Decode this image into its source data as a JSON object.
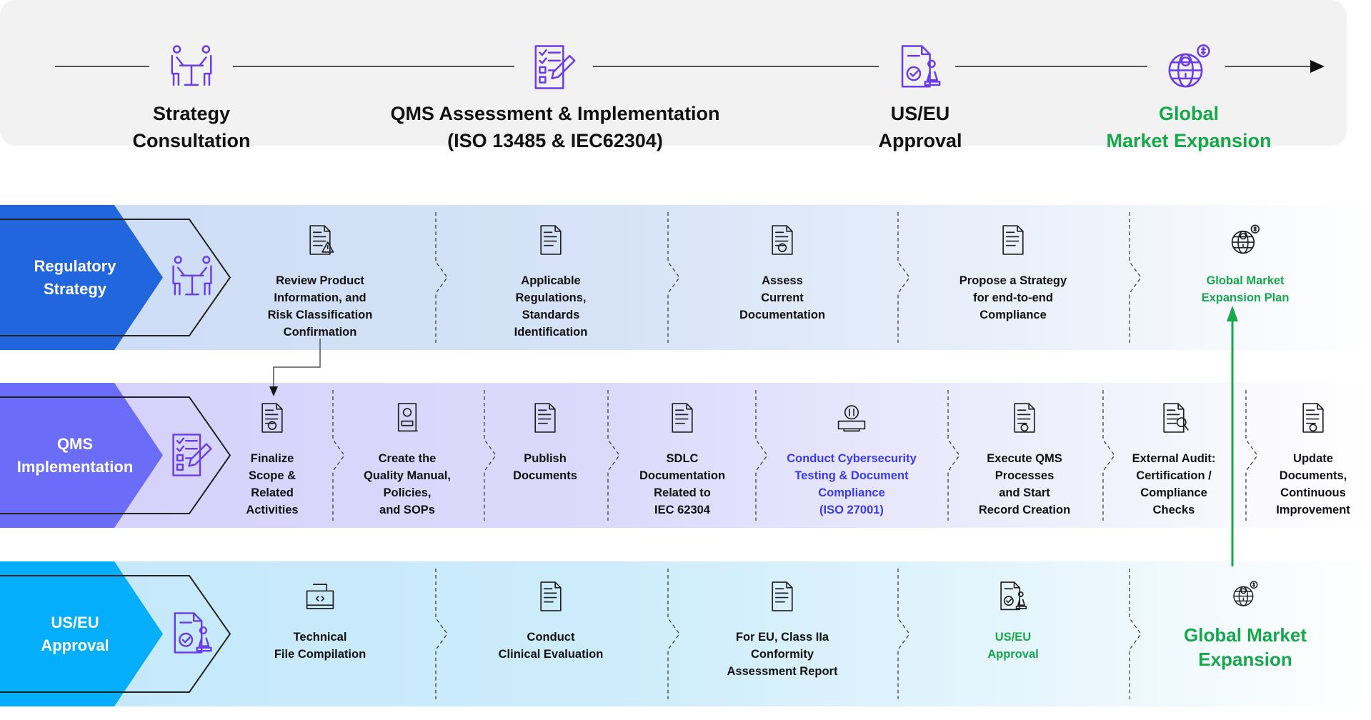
{
  "colors": {
    "green": "#16a84a",
    "blue_text": "#3a3af0",
    "reg": "#2266dd",
    "qms": "#6b6cf7",
    "approval": "#05aefb",
    "icon_purple": "#6a3de8"
  },
  "header": {
    "stages": [
      {
        "title": "Strategy\nConsultation",
        "icon": "meeting-icon",
        "highlight": false
      },
      {
        "title": "QMS Assessment & Implementation\n(ISO 13485 & IEC62304)",
        "icon": "checklist-icon",
        "highlight": false
      },
      {
        "title": "US/EU\nApproval",
        "icon": "approval-stamp-icon",
        "highlight": false
      },
      {
        "title": "Global\nMarket Expansion",
        "icon": "globe-dollar-icon",
        "highlight": true
      }
    ]
  },
  "bands": [
    {
      "label": "Regulatory\nStrategy",
      "icon": "meeting-icon",
      "items": [
        {
          "text": "Review Product\nInformation, and\nRisk Classification\nConfirmation",
          "icon": "document-warning-icon",
          "style": "normal"
        },
        {
          "text": "Applicable\nRegulations,\nStandards\nIdentification",
          "icon": "regulation-document-icon",
          "style": "normal"
        },
        {
          "text": "Assess\nCurrent\nDocumentation",
          "icon": "document-target-icon",
          "style": "normal"
        },
        {
          "text": "Propose a Strategy\nfor end-to-end\nCompliance",
          "icon": "strategy-clipboard-icon",
          "style": "normal"
        },
        {
          "text": "Global Market\nExpansion Plan",
          "icon": "globe-plan-icon",
          "style": "green"
        }
      ]
    },
    {
      "label": "QMS\nImplementation",
      "icon": "checklist-icon",
      "items": [
        {
          "text": "Finalize\nScope &\nRelated\nActivities",
          "icon": "scope-target-icon",
          "style": "normal"
        },
        {
          "text": "Create the\nQuality Manual,\nPolicies,\nand SOPs",
          "icon": "manual-book-icon",
          "style": "normal"
        },
        {
          "text": "Publish\nDocuments",
          "icon": "publish-document-icon",
          "style": "normal"
        },
        {
          "text": "SDLC\nDocumentation\nRelated to\nIEC 62304",
          "icon": "sdlc-documents-icon",
          "style": "normal"
        },
        {
          "text": "Conduct Cybersecurity\nTesting & Document\nCompliance\n(ISO 27001)",
          "icon": "cybersecurity-icon",
          "style": "blue"
        },
        {
          "text": "Execute QMS\nProcesses\nand Start\nRecord Creation",
          "icon": "monitor-process-icon",
          "style": "normal"
        },
        {
          "text": "External Audit:\nCertification /\nCompliance\nChecks",
          "icon": "audit-certificate-icon",
          "style": "normal"
        },
        {
          "text": "Update\nDocuments,\nContinuous\nImprovement",
          "icon": "document-gear-icon",
          "style": "normal"
        }
      ]
    },
    {
      "label": "US/EU\nApproval",
      "icon": "approval-stamp-icon",
      "items": [
        {
          "text": "Technical\nFile Compilation",
          "icon": "technical-file-icon",
          "style": "normal"
        },
        {
          "text": "Conduct\nClinical Evaluation",
          "icon": "clinical-evaluation-icon",
          "style": "normal"
        },
        {
          "text": "For EU, Class IIa\nConformity\nAssessment Report",
          "icon": "assessment-report-icon",
          "style": "normal"
        },
        {
          "text": "US/EU\nApproval",
          "icon": "approval-stamp-icon",
          "style": "green"
        },
        {
          "text": "Global Market\nExpansion",
          "icon": "globe-dollar-icon",
          "style": "green-big"
        }
      ]
    }
  ]
}
